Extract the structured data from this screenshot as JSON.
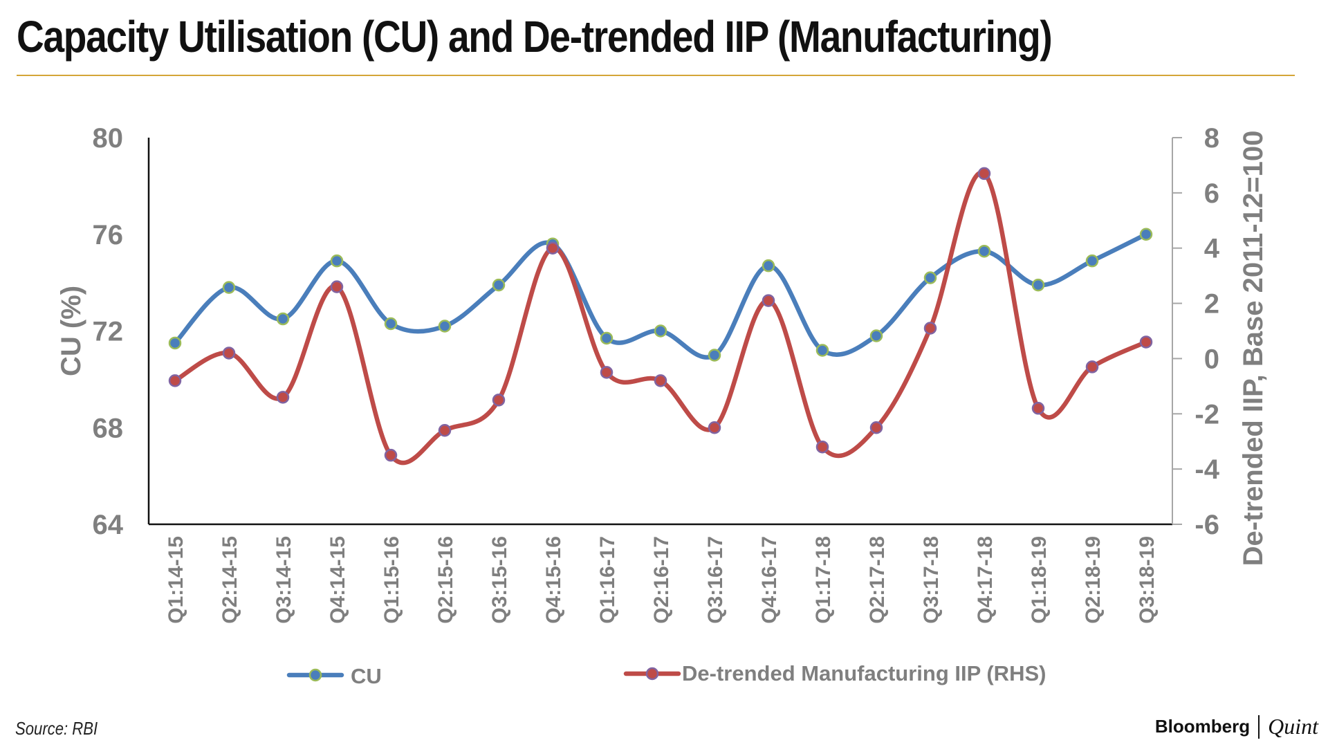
{
  "chart_title": "Capacity Utilisation (CU) and De-trended IIP (Manufacturing)",
  "source": "Source: RBI",
  "brand": {
    "primary": "Bloomberg",
    "secondary": "Quint"
  },
  "colors": {
    "cu": "#4a7ebb",
    "iip": "#be4b48",
    "cu_marker_edge": "#9bbb59",
    "iip_marker_edge": "#8064a2",
    "rule": "#d4a537",
    "axis_text": "#7f7f7f"
  },
  "chart_data": {
    "type": "line",
    "categories": [
      "Q1:14-15",
      "Q2:14-15",
      "Q3:14-15",
      "Q4:14-15",
      "Q1:15-16",
      "Q2:15-16",
      "Q3:15-16",
      "Q4:15-16",
      "Q1:16-17",
      "Q2:16-17",
      "Q3:16-17",
      "Q4:16-17",
      "Q1:17-18",
      "Q2:17-18",
      "Q3:17-18",
      "Q4:17-18",
      "Q1:18-19",
      "Q2:18-19",
      "Q3:18-19"
    ],
    "series": [
      {
        "name": "CU",
        "axis": "left",
        "values": [
          71.5,
          73.8,
          72.5,
          74.9,
          72.3,
          72.2,
          73.9,
          75.6,
          71.7,
          72.0,
          71.0,
          74.7,
          71.2,
          71.8,
          74.2,
          75.3,
          73.9,
          74.9,
          76.0
        ]
      },
      {
        "name": "De-trended Manufacturing IIP (RHS)",
        "axis": "right",
        "values": [
          -0.8,
          0.2,
          -1.4,
          2.6,
          -3.5,
          -2.6,
          -1.5,
          4.0,
          -0.5,
          -0.8,
          -2.5,
          2.1,
          -3.2,
          -2.5,
          1.1,
          6.7,
          -1.8,
          -0.3,
          0.6
        ]
      }
    ],
    "yaxis_left": {
      "label": "CU (%)",
      "min": 64,
      "max": 80,
      "ticks": [
        64,
        68,
        72,
        76,
        80
      ]
    },
    "yaxis_right": {
      "label": "De-trended IIP, Base 2011-12=100",
      "min": -6,
      "max": 8,
      "ticks": [
        -6,
        -4,
        -2,
        0,
        2,
        4,
        6,
        8
      ]
    },
    "legend": {
      "position": "bottom",
      "items": [
        "CU",
        "De-trended Manufacturing IIP (RHS)"
      ]
    }
  }
}
